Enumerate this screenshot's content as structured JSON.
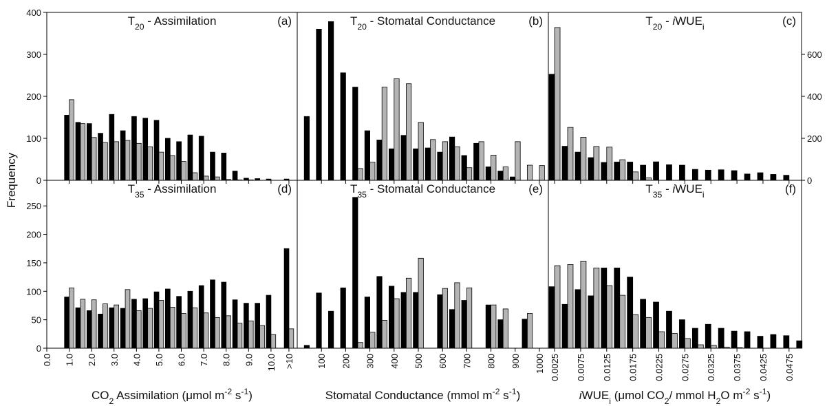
{
  "chart_data": [
    {
      "type": "bar",
      "panel_label": "(a)",
      "title_parts": [
        {
          "text": "T"
        },
        {
          "text": "20",
          "sub": true
        },
        {
          "text": " - Assimilation"
        }
      ],
      "y_label": "Frequency",
      "xlim": [
        0,
        11.17
      ],
      "ylim": [
        0,
        400
      ],
      "yticks": [
        0,
        100,
        200,
        300,
        400
      ],
      "x": [
        1,
        1.5,
        2,
        2.5,
        3,
        3.5,
        4,
        4.5,
        5,
        5.5,
        6,
        6.5,
        7,
        7.5,
        8,
        8.5,
        9,
        9.5,
        10,
        10.8
      ],
      "series": [
        {
          "color": "#000000",
          "values": [
            155,
            138,
            135,
            112,
            157,
            118,
            152,
            148,
            143,
            100,
            92,
            108,
            105,
            67,
            65,
            22,
            5,
            4,
            3,
            3
          ]
        },
        {
          "color": "#b4b4b4",
          "values": [
            192,
            135,
            102,
            90,
            92,
            95,
            88,
            80,
            67,
            59,
            45,
            18,
            10,
            8,
            2,
            1,
            1,
            0,
            0,
            0
          ]
        }
      ]
    },
    {
      "type": "bar",
      "panel_label": "(b)",
      "title_parts": [
        {
          "text": "T"
        },
        {
          "text": "20",
          "sub": true
        },
        {
          "text": " - Stomatal Conductance"
        }
      ],
      "xlim": [
        0,
        1037
      ],
      "ylim": [
        0,
        400
      ],
      "x": [
        50,
        100,
        150,
        200,
        250,
        300,
        350,
        400,
        450,
        500,
        550,
        600,
        650,
        700,
        750,
        800,
        850,
        900,
        950,
        1000
      ],
      "series": [
        {
          "color": "#000000",
          "values": [
            152,
            360,
            378,
            256,
            222,
            118,
            96,
            75,
            107,
            75,
            77,
            67,
            103,
            59,
            88,
            32,
            22,
            8,
            0,
            0
          ]
        },
        {
          "color": "#b4b4b4",
          "values": [
            0,
            0,
            0,
            0,
            28,
            43,
            222,
            242,
            230,
            138,
            97,
            92,
            80,
            30,
            92,
            60,
            32,
            92,
            36,
            35
          ]
        }
      ]
    },
    {
      "type": "bar",
      "panel_label": "(c)",
      "title_parts": [
        {
          "text": "T"
        },
        {
          "text": "20",
          "sub": true
        },
        {
          "text": " - "
        },
        {
          "text": "i",
          "italic": true
        },
        {
          "text": "WUE"
        },
        {
          "text": "i",
          "sub": true
        }
      ],
      "xlim": [
        0.0013,
        0.0499
      ],
      "ylim": [
        0,
        400
      ],
      "y2lim": [
        0,
        800
      ],
      "y2ticks": [
        0,
        200,
        400,
        600
      ],
      "x": [
        0.0025,
        0.005,
        0.0075,
        0.01,
        0.0125,
        0.015,
        0.0175,
        0.02,
        0.0225,
        0.025,
        0.0275,
        0.03,
        0.0325,
        0.035,
        0.0375,
        0.04,
        0.0425,
        0.045,
        0.0475
      ],
      "series": [
        {
          "color": "#000000",
          "axis": "y2",
          "values": [
            505,
            162,
            134,
            108,
            85,
            87,
            87,
            72,
            88,
            74,
            72,
            52,
            48,
            50,
            46,
            30,
            36,
            28,
            24
          ]
        },
        {
          "color": "#b4b4b4",
          "axis": "y2",
          "values": [
            728,
            252,
            205,
            161,
            158,
            98,
            40,
            12,
            0,
            0,
            0,
            0,
            0,
            0,
            0,
            0,
            0,
            0,
            0
          ]
        }
      ]
    },
    {
      "type": "bar",
      "panel_label": "(d)",
      "title_parts": [
        {
          "text": "T"
        },
        {
          "text": "35",
          "sub": true
        },
        {
          "text": " - Assimilation"
        }
      ],
      "x_label_parts": [
        {
          "text": "CO"
        },
        {
          "text": "2",
          "sub": true
        },
        {
          "text": " Assimilation (μmol m"
        },
        {
          "text": "-2",
          "sup": true
        },
        {
          "text": " s"
        },
        {
          "text": "-1",
          "sup": true
        },
        {
          "text": ")"
        }
      ],
      "xlim": [
        0,
        11.17
      ],
      "ylim": [
        0,
        295
      ],
      "yticks": [
        0,
        50,
        100,
        150,
        200,
        250
      ],
      "xticks": [
        {
          "value": 0,
          "label": "0.0"
        },
        {
          "value": 1,
          "label": "1.0"
        },
        {
          "value": 2,
          "label": "2.0"
        },
        {
          "value": 3,
          "label": "3.0"
        },
        {
          "value": 4,
          "label": "4.0"
        },
        {
          "value": 5,
          "label": "5.0"
        },
        {
          "value": 6,
          "label": "6.0"
        },
        {
          "value": 7,
          "label": "7.0"
        },
        {
          "value": 8,
          "label": "8.0"
        },
        {
          "value": 9,
          "label": "9.0"
        },
        {
          "value": 10,
          "label": "10.0"
        },
        {
          "value": 10.8,
          "label": ">10"
        }
      ],
      "x": [
        1,
        1.5,
        2,
        2.5,
        3,
        3.5,
        4,
        4.5,
        5,
        5.5,
        6,
        6.5,
        7,
        7.5,
        8,
        8.5,
        9,
        9.5,
        10,
        10.8
      ],
      "series": [
        {
          "color": "#000000",
          "values": [
            90,
            71,
            66,
            60,
            71,
            70,
            86,
            87,
            99,
            104,
            91,
            100,
            110,
            120,
            116,
            85,
            79,
            79,
            93,
            175
          ]
        },
        {
          "color": "#b4b4b4",
          "values": [
            106,
            86,
            85,
            78,
            76,
            103,
            66,
            70,
            84,
            72,
            61,
            71,
            62,
            54,
            57,
            44,
            48,
            40,
            24,
            34
          ]
        }
      ]
    },
    {
      "type": "bar",
      "panel_label": "(e)",
      "title_parts": [
        {
          "text": "T"
        },
        {
          "text": "35",
          "sub": true
        },
        {
          "text": " - Stomatal Conductance"
        }
      ],
      "x_label_parts": [
        {
          "text": "Stomatal Conductance (mmol m"
        },
        {
          "text": "-2",
          "sup": true
        },
        {
          "text": " s"
        },
        {
          "text": "-1",
          "sup": true
        },
        {
          "text": ")"
        }
      ],
      "xlim": [
        0,
        1037
      ],
      "ylim": [
        0,
        295
      ],
      "xticks": [
        100,
        200,
        300,
        400,
        500,
        600,
        700,
        800,
        900,
        1000
      ],
      "x": [
        50,
        100,
        150,
        200,
        250,
        300,
        350,
        400,
        450,
        500,
        550,
        600,
        650,
        700,
        750,
        800,
        850,
        900,
        950,
        1000
      ],
      "series": [
        {
          "color": "#000000",
          "values": [
            5,
            97,
            65,
            106,
            265,
            90,
            126,
            109,
            98,
            98,
            0,
            94,
            68,
            84,
            0,
            76,
            50,
            0,
            51,
            0
          ]
        },
        {
          "color": "#b4b4b4",
          "values": [
            0,
            0,
            0,
            0,
            10,
            28,
            49,
            87,
            123,
            158,
            0,
            105,
            115,
            106,
            0,
            76,
            69,
            0,
            61,
            0
          ]
        }
      ]
    },
    {
      "type": "bar",
      "panel_label": "(f)",
      "title_parts": [
        {
          "text": "T"
        },
        {
          "text": "35",
          "sub": true
        },
        {
          "text": " - "
        },
        {
          "text": "i",
          "italic": true
        },
        {
          "text": "WUE"
        },
        {
          "text": "i",
          "sub": true
        }
      ],
      "x_label_parts": [
        {
          "text": "i",
          "italic": true
        },
        {
          "text": "WUE"
        },
        {
          "text": "i",
          "sub": true
        },
        {
          "text": " (μmol CO"
        },
        {
          "text": "2",
          "sub": true
        },
        {
          "text": "/ mmol H"
        },
        {
          "text": "2",
          "sub": true
        },
        {
          "text": "O m"
        },
        {
          "text": "-2",
          "sup": true
        },
        {
          "text": " s"
        },
        {
          "text": "-1",
          "sup": true
        },
        {
          "text": ")"
        }
      ],
      "xlim": [
        0.0013,
        0.0499
      ],
      "ylim": [
        0,
        295
      ],
      "xticks": [
        0.0025,
        0.0075,
        0.0125,
        0.0175,
        0.0225,
        0.0275,
        0.0325,
        0.0375,
        0.0425,
        0.0475
      ],
      "x": [
        0.0025,
        0.005,
        0.0075,
        0.01,
        0.0125,
        0.015,
        0.0175,
        0.02,
        0.0225,
        0.025,
        0.0275,
        0.03,
        0.0325,
        0.035,
        0.0375,
        0.04,
        0.0425,
        0.045,
        0.0475,
        0.05
      ],
      "series": [
        {
          "color": "#000000",
          "values": [
            108,
            77,
            103,
            92,
            141,
            141,
            125,
            86,
            81,
            65,
            50,
            35,
            42,
            35,
            30,
            29,
            21,
            24,
            22,
            13
          ]
        },
        {
          "color": "#b4b4b4",
          "values": [
            145,
            147,
            153,
            141,
            110,
            93,
            59,
            54,
            29,
            26,
            17,
            6,
            5,
            2,
            1,
            0,
            0,
            0,
            0,
            0
          ]
        }
      ]
    }
  ]
}
